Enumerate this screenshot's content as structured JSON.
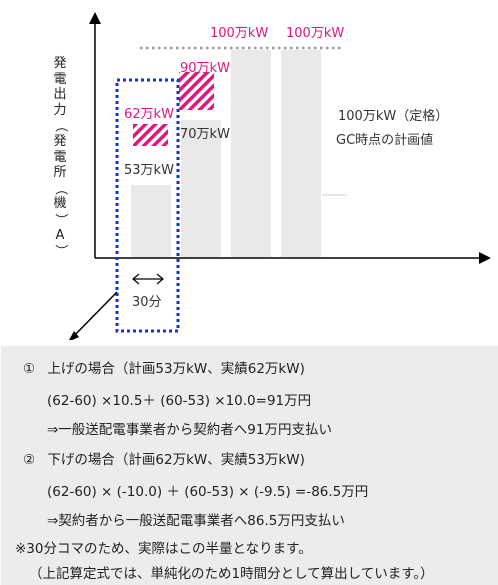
{
  "diagram": {
    "y_axis_label": [
      "発",
      "電",
      "出",
      "力",
      "（",
      "発",
      "電",
      "所",
      "（",
      "機",
      "）",
      "A",
      "）"
    ],
    "top_labels": [
      "100万kW",
      "100万kW"
    ],
    "bar_labels": {
      "actual_62": "62万kW",
      "plan_53": "53万kW",
      "actual_90": "90万kW",
      "plan_70": "70万kW"
    },
    "legend_rated": "100万kW（定格）",
    "legend_gc": "GC時点の計画値",
    "interval_label": "30分",
    "colors": {
      "highlight": "#e0187c",
      "box": "#1a2fd8",
      "bar": "#e9e9e9",
      "dotted": "#999999"
    }
  },
  "explanation": {
    "case1_title": "上げの場合（計画53万kW、実績62万kW)",
    "case1_formula": "(62-60) ×10.5＋ (60-53) ×10.0=91万円",
    "case1_result": "⇒一般送配電事業者から契約者へ91万円支払い",
    "case2_title": "下げの場合（計画62万kW、実績53万kW)",
    "case2_formula": "(62-60) × (-10.0) ＋ (60-53) × (-9.5) =-86.5万円",
    "case2_result": "⇒契約者から一般送配電事業者へ86.5万円支払い",
    "note1": "※30分コマのため、実際はこの半量となります。",
    "note2": "（上記算定式では、単純化のため1時間分として算出しています。）"
  }
}
